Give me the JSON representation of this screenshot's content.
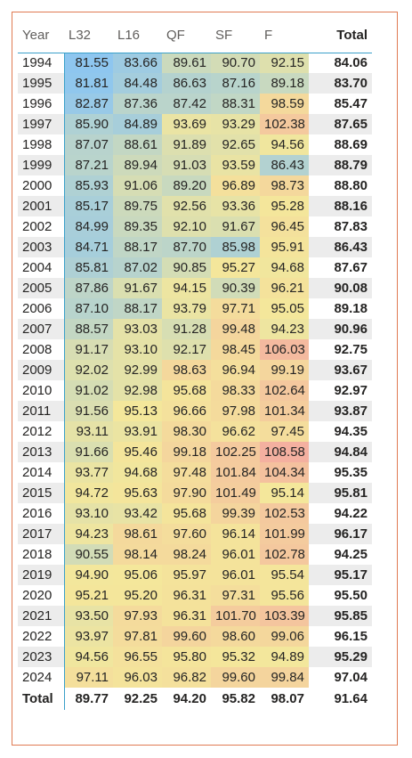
{
  "columns": [
    "Year",
    "L32",
    "L16",
    "QF",
    "SF",
    "F",
    "Total"
  ],
  "rows": [
    {
      "year": "1994",
      "values": [
        "81.55",
        "83.66",
        "89.61",
        "90.70",
        "92.15"
      ],
      "total": "84.06"
    },
    {
      "year": "1995",
      "values": [
        "81.81",
        "84.48",
        "86.63",
        "87.16",
        "89.18"
      ],
      "total": "83.70"
    },
    {
      "year": "1996",
      "values": [
        "82.87",
        "87.36",
        "87.42",
        "88.31",
        "98.59"
      ],
      "total": "85.47"
    },
    {
      "year": "1997",
      "values": [
        "85.90",
        "84.89",
        "93.69",
        "93.29",
        "102.38"
      ],
      "total": "87.65"
    },
    {
      "year": "1998",
      "values": [
        "87.07",
        "88.61",
        "91.89",
        "92.65",
        "94.56"
      ],
      "total": "88.69"
    },
    {
      "year": "1999",
      "values": [
        "87.21",
        "89.94",
        "91.03",
        "93.59",
        "86.43"
      ],
      "total": "88.79"
    },
    {
      "year": "2000",
      "values": [
        "85.93",
        "91.06",
        "89.20",
        "96.89",
        "98.73"
      ],
      "total": "88.80"
    },
    {
      "year": "2001",
      "values": [
        "85.17",
        "89.75",
        "92.56",
        "93.36",
        "95.28"
      ],
      "total": "88.16"
    },
    {
      "year": "2002",
      "values": [
        "84.99",
        "89.35",
        "92.10",
        "91.67",
        "96.45"
      ],
      "total": "87.83"
    },
    {
      "year": "2003",
      "values": [
        "84.71",
        "88.17",
        "87.70",
        "85.98",
        "95.91"
      ],
      "total": "86.43"
    },
    {
      "year": "2004",
      "values": [
        "85.81",
        "87.02",
        "90.85",
        "95.27",
        "94.68"
      ],
      "total": "87.67"
    },
    {
      "year": "2005",
      "values": [
        "87.86",
        "91.67",
        "94.15",
        "90.39",
        "96.21"
      ],
      "total": "90.08"
    },
    {
      "year": "2006",
      "values": [
        "87.10",
        "88.17",
        "93.79",
        "97.71",
        "95.05"
      ],
      "total": "89.18"
    },
    {
      "year": "2007",
      "values": [
        "88.57",
        "93.03",
        "91.28",
        "99.48",
        "94.23"
      ],
      "total": "90.96"
    },
    {
      "year": "2008",
      "values": [
        "91.17",
        "93.10",
        "92.17",
        "98.45",
        "106.03"
      ],
      "total": "92.75"
    },
    {
      "year": "2009",
      "values": [
        "92.02",
        "92.99",
        "98.63",
        "96.94",
        "99.19"
      ],
      "total": "93.67"
    },
    {
      "year": "2010",
      "values": [
        "91.02",
        "92.98",
        "95.68",
        "98.33",
        "102.64"
      ],
      "total": "92.97"
    },
    {
      "year": "2011",
      "values": [
        "91.56",
        "95.13",
        "96.66",
        "97.98",
        "101.34"
      ],
      "total": "93.87"
    },
    {
      "year": "2012",
      "values": [
        "93.11",
        "93.91",
        "98.30",
        "96.62",
        "97.45"
      ],
      "total": "94.35"
    },
    {
      "year": "2013",
      "values": [
        "91.66",
        "95.46",
        "99.18",
        "102.25",
        "108.58"
      ],
      "total": "94.84"
    },
    {
      "year": "2014",
      "values": [
        "93.77",
        "94.68",
        "97.48",
        "101.84",
        "104.34"
      ],
      "total": "95.35"
    },
    {
      "year": "2015",
      "values": [
        "94.72",
        "95.63",
        "97.90",
        "101.49",
        "95.14"
      ],
      "total": "95.81"
    },
    {
      "year": "2016",
      "values": [
        "93.10",
        "93.42",
        "95.68",
        "99.39",
        "102.53"
      ],
      "total": "94.22"
    },
    {
      "year": "2017",
      "values": [
        "94.23",
        "98.61",
        "97.60",
        "96.14",
        "101.99"
      ],
      "total": "96.17"
    },
    {
      "year": "2018",
      "values": [
        "90.55",
        "98.14",
        "98.24",
        "96.01",
        "102.78"
      ],
      "total": "94.25"
    },
    {
      "year": "2019",
      "values": [
        "94.90",
        "95.06",
        "95.97",
        "96.01",
        "95.54"
      ],
      "total": "95.17"
    },
    {
      "year": "2020",
      "values": [
        "95.21",
        "95.20",
        "96.31",
        "97.31",
        "95.56"
      ],
      "total": "95.50"
    },
    {
      "year": "2021",
      "values": [
        "93.50",
        "97.93",
        "96.31",
        "101.70",
        "103.39"
      ],
      "total": "95.85"
    },
    {
      "year": "2022",
      "values": [
        "93.97",
        "97.81",
        "99.60",
        "98.60",
        "99.06"
      ],
      "total": "96.15"
    },
    {
      "year": "2023",
      "values": [
        "94.56",
        "96.55",
        "95.80",
        "95.32",
        "94.89"
      ],
      "total": "95.29"
    },
    {
      "year": "2024",
      "values": [
        "97.11",
        "96.03",
        "96.82",
        "99.60",
        "99.84"
      ],
      "total": "97.04"
    }
  ],
  "totals": {
    "label": "Total",
    "values": [
      "89.77",
      "92.25",
      "94.20",
      "95.82",
      "98.07"
    ],
    "grand_total": "91.64"
  },
  "colors": {
    "scale_low": "#8EC6EF",
    "scale_mid": "#F4E79B",
    "scale_high": "#F4B0A0",
    "panel_border": "#E07A52",
    "divider": "#3AA0C9",
    "banding": "#ECECEC"
  }
}
